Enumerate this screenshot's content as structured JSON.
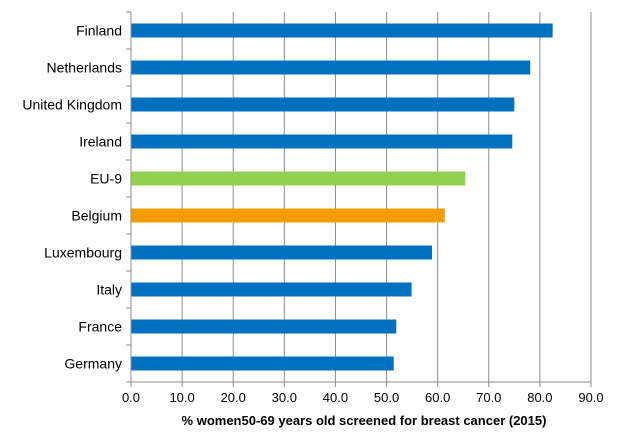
{
  "chart_data": {
    "type": "bar",
    "orientation": "horizontal",
    "categories": [
      "Finland",
      "Netherlands",
      "United Kingdom",
      "Ireland",
      "EU-9",
      "Belgium",
      "Luxembourg",
      "Italy",
      "France",
      "Germany"
    ],
    "values": [
      82.5,
      78.1,
      75.0,
      74.6,
      65.4,
      61.4,
      58.9,
      54.9,
      51.9,
      51.4
    ],
    "colors": [
      "#0070c0",
      "#0070c0",
      "#0070c0",
      "#0070c0",
      "#92d050",
      "#f39c00",
      "#0070c0",
      "#0070c0",
      "#0070c0",
      "#0070c0"
    ],
    "title": "",
    "xlabel": "% women50-69 years old screened for breast cancer (2015)",
    "ylabel": "",
    "xlim": [
      0,
      90
    ],
    "xticks": [
      0,
      10,
      20,
      30,
      40,
      50,
      60,
      70,
      80,
      90
    ],
    "xtick_labels": [
      "0.0",
      "10.0",
      "20.0",
      "30.0",
      "40.0",
      "50.0",
      "60.0",
      "70.0",
      "80.0",
      "90.0"
    ],
    "grid": "vertical",
    "legend": "none"
  }
}
